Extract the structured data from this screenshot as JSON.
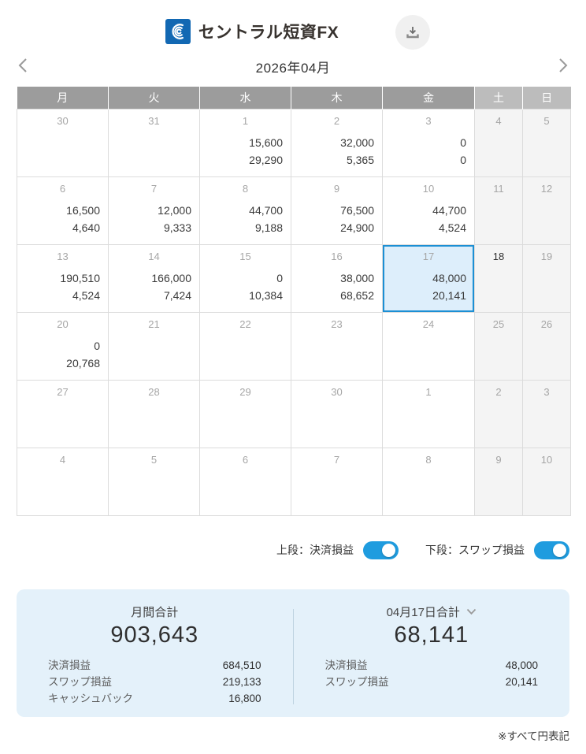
{
  "header": {
    "logo_text": "セントラル短資FX"
  },
  "month_nav": {
    "title": "2026年04月"
  },
  "calendar": {
    "day_headers": [
      {
        "label": "月",
        "weekend": false
      },
      {
        "label": "火",
        "weekend": false
      },
      {
        "label": "水",
        "weekend": false
      },
      {
        "label": "木",
        "weekend": false
      },
      {
        "label": "金",
        "weekend": false
      },
      {
        "label": "土",
        "weekend": true
      },
      {
        "label": "日",
        "weekend": true
      }
    ],
    "weeks": [
      [
        {
          "date": "30"
        },
        {
          "date": "31"
        },
        {
          "date": "1",
          "upper": "15,600",
          "lower": "29,290"
        },
        {
          "date": "2",
          "upper": "32,000",
          "lower": "5,365"
        },
        {
          "date": "3",
          "upper": "0",
          "lower": "0"
        },
        {
          "date": "4",
          "weekend": true
        },
        {
          "date": "5",
          "weekend": true
        }
      ],
      [
        {
          "date": "6",
          "upper": "16,500",
          "lower": "4,640"
        },
        {
          "date": "7",
          "upper": "12,000",
          "lower": "9,333"
        },
        {
          "date": "8",
          "upper": "44,700",
          "lower": "9,188"
        },
        {
          "date": "9",
          "upper": "76,500",
          "lower": "24,900"
        },
        {
          "date": "10",
          "upper": "44,700",
          "lower": "4,524"
        },
        {
          "date": "11",
          "weekend": true
        },
        {
          "date": "12",
          "weekend": true
        }
      ],
      [
        {
          "date": "13",
          "upper": "190,510",
          "lower": "4,524"
        },
        {
          "date": "14",
          "upper": "166,000",
          "lower": "7,424"
        },
        {
          "date": "15",
          "upper": "0",
          "lower": "10,384"
        },
        {
          "date": "16",
          "upper": "38,000",
          "lower": "68,652"
        },
        {
          "date": "17",
          "upper": "48,000",
          "lower": "20,141",
          "selected": true
        },
        {
          "date": "18",
          "weekend": true,
          "today": true
        },
        {
          "date": "19",
          "weekend": true
        }
      ],
      [
        {
          "date": "20",
          "upper": "0",
          "lower": "20,768"
        },
        {
          "date": "21"
        },
        {
          "date": "22"
        },
        {
          "date": "23"
        },
        {
          "date": "24"
        },
        {
          "date": "25",
          "weekend": true
        },
        {
          "date": "26",
          "weekend": true
        }
      ],
      [
        {
          "date": "27"
        },
        {
          "date": "28"
        },
        {
          "date": "29"
        },
        {
          "date": "30"
        },
        {
          "date": "1"
        },
        {
          "date": "2",
          "weekend": true
        },
        {
          "date": "3",
          "weekend": true
        }
      ],
      [
        {
          "date": "4"
        },
        {
          "date": "5"
        },
        {
          "date": "6"
        },
        {
          "date": "7"
        },
        {
          "date": "8"
        },
        {
          "date": "9",
          "weekend": true
        },
        {
          "date": "10",
          "weekend": true
        }
      ]
    ]
  },
  "toggles": [
    {
      "label": "上段：決済損益",
      "on": true
    },
    {
      "label": "下段：スワップ損益",
      "on": true
    }
  ],
  "summary": {
    "monthly": {
      "title": "月間合計",
      "total": "903,643",
      "rows": [
        {
          "label": "決済損益",
          "value": "684,510"
        },
        {
          "label": "スワップ損益",
          "value": "219,133"
        },
        {
          "label": "キャッシュバック",
          "value": "16,800"
        }
      ]
    },
    "daily": {
      "title": "04月17日合計",
      "total": "68,141",
      "rows": [
        {
          "label": "決済損益",
          "value": "48,000"
        },
        {
          "label": "スワップ損益",
          "value": "20,141"
        }
      ]
    }
  },
  "footnote": "※すべて円表記",
  "colors": {
    "accent_blue": "#1f9cdf",
    "selected_border": "#1c8fd4",
    "selected_bg": "#ddeefb",
    "panel_bg": "#e4f1fa",
    "header_weekday_bg": "#9c9c9c",
    "header_weekend_bg": "#bcbcbc",
    "weekend_cell_bg": "#f4f4f4",
    "logo_blue": "#1268b3"
  }
}
